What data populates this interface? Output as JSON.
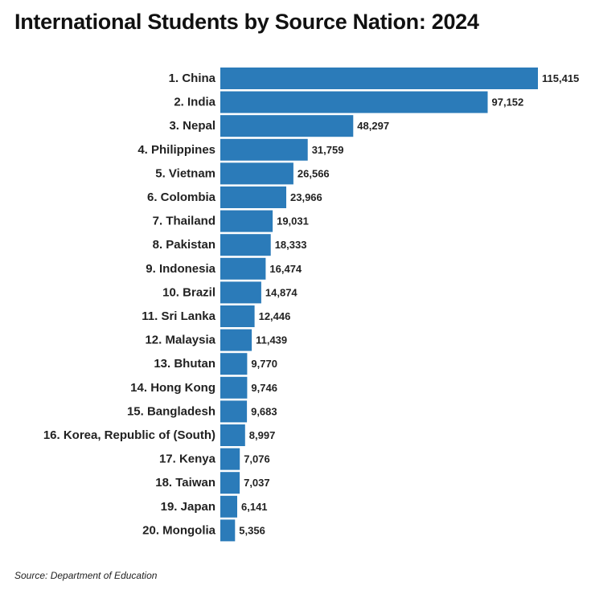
{
  "title": "International Students by Source Nation: 2024",
  "source": "Source: Department of Education",
  "colors": {
    "bar": "#2b7bb9",
    "text": "#222222",
    "background": "#ffffff"
  },
  "chart_data": {
    "type": "bar",
    "orientation": "horizontal",
    "title": "International Students by Source Nation: 2024",
    "xlabel": "",
    "ylabel": "",
    "grid": false,
    "legend": "none",
    "xlim": [
      0,
      115415
    ],
    "categories": [
      "1. China",
      "2. India",
      "3. Nepal",
      "4. Philippines",
      "5. Vietnam",
      "6. Colombia",
      "7. Thailand",
      "8. Pakistan",
      "9. Indonesia",
      "10. Brazil",
      "11. Sri Lanka",
      "12. Malaysia",
      "13. Bhutan",
      "14. Hong Kong",
      "15. Bangladesh",
      "16. Korea, Republic of (South)",
      "17. Kenya",
      "18. Taiwan",
      "19. Japan",
      "20. Mongolia"
    ],
    "values": [
      115415,
      97152,
      48297,
      31759,
      26566,
      23966,
      19031,
      18333,
      16474,
      14874,
      12446,
      11439,
      9770,
      9746,
      9683,
      8997,
      7076,
      7037,
      6141,
      5356
    ],
    "value_labels": [
      "115,415",
      "97,152",
      "48,297",
      "31,759",
      "26,566",
      "23,966",
      "19,031",
      "18,333",
      "16,474",
      "14,874",
      "12,446",
      "11,439",
      "9,770",
      "9,746",
      "9,683",
      "8,997",
      "7,076",
      "7,037",
      "6,141",
      "5,356"
    ]
  }
}
